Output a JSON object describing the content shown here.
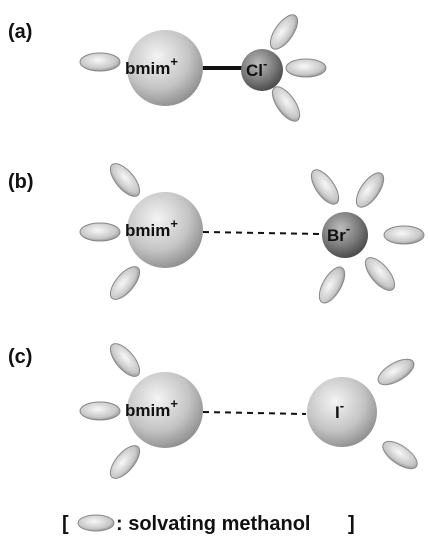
{
  "panels": [
    {
      "label": "(a)",
      "cation": {
        "name": "bmim",
        "charge": "+"
      },
      "anion": {
        "name": "Cl",
        "charge": "-"
      }
    },
    {
      "label": "(b)",
      "cation": {
        "name": "bmim",
        "charge": "+"
      },
      "anion": {
        "name": "Br",
        "charge": "-"
      }
    },
    {
      "label": "(c)",
      "cation": {
        "name": "bmim",
        "charge": "+"
      },
      "anion": {
        "name": "I",
        "charge": "-"
      }
    }
  ],
  "legend": {
    "open": "[",
    "text": ": solvating methanol",
    "close": "]"
  }
}
